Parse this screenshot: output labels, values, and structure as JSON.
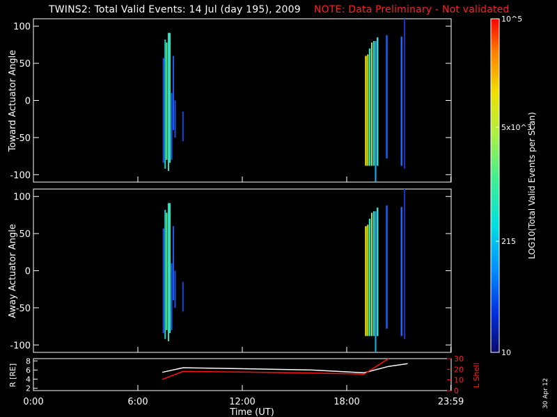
{
  "header": {
    "title": "TWINS2: Total Valid Events: 14 Jul (day 195), 2009",
    "note": "NOTE: Data Preliminary - Not validated"
  },
  "footer": {
    "date_stamp": "30 Apr 12"
  },
  "chart_data": [
    {
      "type": "heatmap",
      "name": "toward",
      "ylabel": "Toward Actuator Angle",
      "ylim": [
        -110,
        110
      ],
      "yticks": [
        "100",
        "50",
        "0",
        "-50",
        "-100"
      ],
      "yticks_values": [
        100,
        50,
        0,
        -50,
        -100
      ],
      "xlim": [
        0,
        24
      ],
      "strips": [
        {
          "t": 7.43,
          "w": 0.07,
          "ymin": -84,
          "ymax": 57,
          "c": "#1e5cf0"
        },
        {
          "t": 7.53,
          "w": 0.08,
          "ymin": -92,
          "ymax": 82,
          "c": "#1ad6c9"
        },
        {
          "t": 7.62,
          "w": 0.08,
          "ymin": -80,
          "ymax": 78,
          "c": "#6fe883"
        },
        {
          "t": 7.72,
          "w": 0.08,
          "ymin": -95,
          "ymax": 91,
          "c": "#26e0c8"
        },
        {
          "t": 7.8,
          "w": 0.06,
          "ymin": -84,
          "ymax": 91,
          "c": "#2ee4be"
        },
        {
          "t": 7.9,
          "w": 0.06,
          "ymin": -80,
          "ymax": 10,
          "c": "#1a64f5"
        },
        {
          "t": 8.0,
          "w": 0.05,
          "ymin": -40,
          "ymax": 60,
          "c": "#1a5af0"
        },
        {
          "t": 8.1,
          "w": 0.04,
          "ymin": -50,
          "ymax": 0,
          "c": "#1e50e8"
        },
        {
          "t": 8.55,
          "w": 0.04,
          "ymin": -55,
          "ymax": -15,
          "c": "#1e46d8"
        },
        {
          "t": 19.05,
          "w": 0.1,
          "ymin": -88,
          "ymax": 60,
          "c": "#f0e000"
        },
        {
          "t": 19.17,
          "w": 0.07,
          "ymin": -88,
          "ymax": 62,
          "c": "#c0ea22"
        },
        {
          "t": 19.27,
          "w": 0.1,
          "ymin": -88,
          "ymax": 70,
          "c": "#2ce4c4"
        },
        {
          "t": 19.4,
          "w": 0.08,
          "ymin": -88,
          "ymax": 78,
          "c": "#8ce86e"
        },
        {
          "t": 19.52,
          "w": 0.08,
          "ymin": -88,
          "ymax": 80,
          "c": "#34e0c8"
        },
        {
          "t": 19.62,
          "w": 0.06,
          "ymin": -110,
          "ymax": 80,
          "c": "#18b4f0"
        },
        {
          "t": 19.72,
          "w": 0.1,
          "ymin": -88,
          "ymax": 85,
          "c": "#2cdcd0"
        },
        {
          "t": 20.25,
          "w": 0.1,
          "ymin": -78,
          "ymax": 88,
          "c": "#1a60f0"
        },
        {
          "t": 21.1,
          "w": 0.1,
          "ymin": -88,
          "ymax": 86,
          "c": "#1a6cf5"
        },
        {
          "t": 21.28,
          "w": 0.08,
          "ymin": -92,
          "ymax": 110,
          "c": "#1a30c8"
        }
      ]
    },
    {
      "type": "heatmap",
      "name": "away",
      "ylabel": "Away Actuator Angle",
      "ylim": [
        -110,
        110
      ],
      "yticks": [
        "100",
        "50",
        "0",
        "-50",
        "-100"
      ],
      "yticks_values": [
        100,
        50,
        0,
        -50,
        -100
      ],
      "xlim": [
        0,
        24
      ],
      "strips": [
        {
          "t": 7.43,
          "w": 0.07,
          "ymin": -84,
          "ymax": 57,
          "c": "#1e5cf0"
        },
        {
          "t": 7.53,
          "w": 0.08,
          "ymin": -92,
          "ymax": 82,
          "c": "#1ad6c9"
        },
        {
          "t": 7.62,
          "w": 0.08,
          "ymin": -80,
          "ymax": 78,
          "c": "#6fe883"
        },
        {
          "t": 7.72,
          "w": 0.08,
          "ymin": -95,
          "ymax": 91,
          "c": "#26e0c8"
        },
        {
          "t": 7.8,
          "w": 0.06,
          "ymin": -84,
          "ymax": 91,
          "c": "#2ee4be"
        },
        {
          "t": 7.9,
          "w": 0.06,
          "ymin": -80,
          "ymax": 10,
          "c": "#1a64f5"
        },
        {
          "t": 8.0,
          "w": 0.05,
          "ymin": -40,
          "ymax": 60,
          "c": "#1a5af0"
        },
        {
          "t": 8.1,
          "w": 0.04,
          "ymin": -50,
          "ymax": 0,
          "c": "#1e50e8"
        },
        {
          "t": 8.55,
          "w": 0.04,
          "ymin": -55,
          "ymax": -15,
          "c": "#1e46d8"
        },
        {
          "t": 19.05,
          "w": 0.1,
          "ymin": -88,
          "ymax": 60,
          "c": "#f0e000"
        },
        {
          "t": 19.17,
          "w": 0.07,
          "ymin": -88,
          "ymax": 62,
          "c": "#c0ea22"
        },
        {
          "t": 19.27,
          "w": 0.1,
          "ymin": -88,
          "ymax": 70,
          "c": "#2ce4c4"
        },
        {
          "t": 19.4,
          "w": 0.08,
          "ymin": -88,
          "ymax": 78,
          "c": "#8ce86e"
        },
        {
          "t": 19.52,
          "w": 0.08,
          "ymin": -88,
          "ymax": 80,
          "c": "#34e0c8"
        },
        {
          "t": 19.62,
          "w": 0.06,
          "ymin": -110,
          "ymax": 80,
          "c": "#18b4f0"
        },
        {
          "t": 19.72,
          "w": 0.1,
          "ymin": -88,
          "ymax": 85,
          "c": "#2cdcd0"
        },
        {
          "t": 20.25,
          "w": 0.1,
          "ymin": -78,
          "ymax": 88,
          "c": "#1a60f0"
        },
        {
          "t": 21.1,
          "w": 0.1,
          "ymin": -88,
          "ymax": 86,
          "c": "#1a6cf5"
        },
        {
          "t": 21.28,
          "w": 0.08,
          "ymin": -92,
          "ymax": 110,
          "c": "#1a30c8"
        }
      ]
    },
    {
      "type": "line",
      "name": "orbit",
      "ylabel": "R [RE]",
      "ylabel_right": "L Shell",
      "xlabel": "Time (UT)",
      "xlim": [
        0,
        24
      ],
      "xticks": [
        "0:00",
        "6:00",
        "12:00",
        "18:00",
        "23:59"
      ],
      "xticks_values": [
        0,
        6,
        12,
        18,
        23.98
      ],
      "ylim": [
        1.5,
        8.5
      ],
      "yticks": [
        "8",
        "6",
        "4",
        "2"
      ],
      "yticks_values": [
        8,
        6,
        4,
        2
      ],
      "ylim_right": [
        0,
        30
      ],
      "yticks_right": [
        "30",
        "20",
        "10",
        "0"
      ],
      "yticks_right_values": [
        30,
        20,
        10,
        0
      ],
      "series": [
        {
          "color": "#ffffff",
          "axis": "left",
          "x": [
            7.4,
            8.6,
            12.0,
            16.0,
            19.0,
            20.4,
            21.5
          ],
          "y": [
            5.5,
            6.5,
            6.3,
            6.0,
            5.4,
            6.8,
            7.4
          ]
        },
        {
          "color": "#ff1010",
          "axis": "right",
          "x": [
            7.4,
            8.6,
            12.0,
            16.0,
            19.0,
            20.4
          ],
          "y": [
            10.5,
            18.0,
            17.5,
            16.5,
            15.5,
            30.0
          ]
        }
      ]
    }
  ],
  "colorbar": {
    "label": "LOG10(Total Valid Events per Scan)",
    "tick_labels": [
      "10^5",
      "5x10^3",
      "215",
      "10"
    ],
    "tick_values": [
      100000,
      5000,
      215,
      10
    ],
    "range": [
      10,
      100000
    ],
    "colors": [
      "#0a0a6e",
      "#0030e0",
      "#0090ff",
      "#00e0e0",
      "#40f090",
      "#b0f040",
      "#f0e000",
      "#ff8000",
      "#ff0000"
    ]
  }
}
